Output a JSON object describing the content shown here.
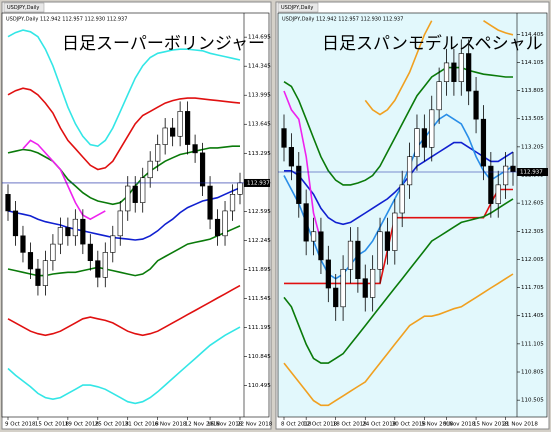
{
  "chart_data": [
    {
      "type": "candlestick",
      "tab": "USDJPY,Daily",
      "header": "USDJPY,Daily 112.942 112.957 112.930 112.937",
      "title": "日足スーパーボリンジャー",
      "background": "#ffffff",
      "last_price": 112.937,
      "categories": [
        "9 Oct 2018",
        null,
        null,
        null,
        "15 Oct 2018",
        null,
        null,
        null,
        "19 Oct 2018",
        null,
        null,
        null,
        "25 Oct 2018",
        null,
        null,
        null,
        "31 Oct 2018",
        null,
        null,
        null,
        "6 Nov 2018",
        null,
        null,
        null,
        "12 Nov 2018",
        null,
        null,
        "16 Nov 2018",
        null,
        null,
        null,
        "22 Nov 2018"
      ],
      "open": [
        112.8,
        112.6,
        112.3,
        112.1,
        111.9,
        111.7,
        112.0,
        112.2,
        112.4,
        112.3,
        112.5,
        112.2,
        112.0,
        111.8,
        112.1,
        112.3,
        112.6,
        112.9,
        112.7,
        113.0,
        113.2,
        113.4,
        113.6,
        113.5,
        113.8,
        113.4,
        113.3,
        112.9,
        112.5,
        112.3,
        112.6,
        112.8
      ],
      "high": [
        112.92,
        112.72,
        112.42,
        112.22,
        112.02,
        112.12,
        112.32,
        112.52,
        112.52,
        112.62,
        112.62,
        112.32,
        112.12,
        112.22,
        112.42,
        112.72,
        113.02,
        113.02,
        113.12,
        113.32,
        113.52,
        113.72,
        113.72,
        113.92,
        113.92,
        113.52,
        113.42,
        113.02,
        112.62,
        112.72,
        112.92,
        113.06
      ],
      "low": [
        112.48,
        112.18,
        111.98,
        111.78,
        111.58,
        111.58,
        111.88,
        112.08,
        112.18,
        112.18,
        112.08,
        111.88,
        111.68,
        111.68,
        111.98,
        112.18,
        112.48,
        112.58,
        112.58,
        112.88,
        113.08,
        113.28,
        113.38,
        113.38,
        113.28,
        113.18,
        112.78,
        112.38,
        112.18,
        112.18,
        112.48,
        112.68
      ],
      "close": [
        112.6,
        112.3,
        112.1,
        111.9,
        111.7,
        112.0,
        112.2,
        112.4,
        112.3,
        112.5,
        112.2,
        112.0,
        111.8,
        112.1,
        112.3,
        112.6,
        112.9,
        112.7,
        113.0,
        113.2,
        113.4,
        113.6,
        113.5,
        113.8,
        113.4,
        113.3,
        112.9,
        112.5,
        112.3,
        112.6,
        112.8,
        112.94
      ],
      "series": [
        {
          "color": "#33e6e6",
          "values": [
            114.7,
            114.75,
            114.78,
            114.76,
            114.7,
            114.55,
            114.35,
            114.1,
            113.85,
            113.65,
            113.5,
            113.4,
            113.38,
            113.45,
            113.6,
            113.8,
            114.0,
            114.2,
            114.35,
            114.45,
            114.5,
            114.52,
            114.54,
            114.55,
            114.55,
            114.54,
            114.53,
            114.5,
            114.48,
            114.46,
            114.44,
            114.42
          ]
        },
        {
          "color": "#e01010",
          "values": [
            114.0,
            114.05,
            114.08,
            114.06,
            114.0,
            113.9,
            113.78,
            113.6,
            113.45,
            113.35,
            113.25,
            113.15,
            113.1,
            113.12,
            113.2,
            113.35,
            113.5,
            113.65,
            113.75,
            113.8,
            113.85,
            113.9,
            113.93,
            113.95,
            113.96,
            113.96,
            113.95,
            113.94,
            113.93,
            113.92,
            113.91,
            113.9
          ]
        },
        {
          "color": "#0a7a0a",
          "values": [
            113.3,
            113.32,
            113.34,
            113.33,
            113.3,
            113.25,
            113.2,
            113.1,
            112.98,
            112.9,
            112.82,
            112.76,
            112.72,
            112.7,
            112.68,
            112.7,
            112.78,
            112.9,
            113.0,
            113.08,
            113.14,
            113.2,
            113.24,
            113.28,
            113.3,
            113.32,
            113.34,
            113.36,
            113.36,
            113.37,
            113.38,
            113.38
          ]
        },
        {
          "color": "#1020d0",
          "values": [
            112.6,
            112.58,
            112.56,
            112.54,
            112.5,
            112.47,
            112.45,
            112.43,
            112.4,
            112.38,
            112.36,
            112.34,
            112.32,
            112.3,
            112.28,
            112.27,
            112.26,
            112.25,
            112.26,
            112.3,
            112.36,
            112.44,
            112.5,
            112.58,
            112.64,
            112.68,
            112.72,
            112.74,
            112.76,
            112.8,
            112.84,
            112.88
          ]
        },
        {
          "color": "#0a7a0a",
          "values": [
            111.9,
            111.88,
            111.86,
            111.84,
            111.82,
            111.82,
            111.84,
            111.85,
            111.86,
            111.86,
            111.88,
            111.9,
            111.92,
            111.9,
            111.88,
            111.86,
            111.84,
            111.82,
            111.84,
            111.9,
            112.0,
            112.05,
            112.1,
            112.15,
            112.2,
            112.22,
            112.24,
            112.26,
            112.3,
            112.34,
            112.38,
            112.42
          ]
        },
        {
          "color": "#e01010",
          "values": [
            111.3,
            111.25,
            111.2,
            111.15,
            111.12,
            111.1,
            111.12,
            111.15,
            111.2,
            111.25,
            111.3,
            111.32,
            111.3,
            111.28,
            111.25,
            111.2,
            111.15,
            111.12,
            111.1,
            111.12,
            111.15,
            111.2,
            111.25,
            111.3,
            111.35,
            111.4,
            111.45,
            111.5,
            111.55,
            111.6,
            111.65,
            111.7
          ]
        },
        {
          "color": "#33e6e6",
          "values": [
            110.7,
            110.62,
            110.55,
            110.48,
            110.4,
            110.35,
            110.33,
            110.35,
            110.4,
            110.45,
            110.5,
            110.5,
            110.48,
            110.45,
            110.4,
            110.35,
            110.3,
            110.28,
            110.3,
            110.35,
            110.42,
            110.5,
            110.58,
            110.66,
            110.74,
            110.82,
            110.9,
            110.98,
            111.04,
            111.1,
            111.15,
            111.2
          ]
        },
        {
          "color": "#ee22ee",
          "values": [
            null,
            null,
            113.35,
            113.45,
            113.4,
            113.3,
            113.2,
            113.1,
            112.9,
            112.7,
            112.55,
            112.5,
            112.55,
            112.6,
            null,
            null,
            null,
            null,
            null,
            null,
            null,
            null,
            null,
            null,
            null,
            null,
            null,
            null,
            null,
            null,
            null,
            null
          ]
        }
      ],
      "ylim": [
        110.2,
        114.95
      ],
      "yticks": [
        114.695,
        114.345,
        113.995,
        113.645,
        113.295,
        112.945,
        112.595,
        112.245,
        111.895,
        111.545,
        111.195,
        110.845,
        110.495
      ]
    },
    {
      "type": "candlestick",
      "tab": "USDJPY,Daily",
      "header": "USDJPY,Daily 112.942 112.957 112.930 112.937",
      "title": "日足スパンモデルスペシャル",
      "background": "#e2f8fc",
      "last_price": 112.937,
      "categories": [
        "8 Oct 2018",
        null,
        null,
        "12 Oct 2018",
        null,
        null,
        null,
        "18 Oct 2018",
        null,
        null,
        null,
        "24 Oct 2018",
        null,
        null,
        null,
        "30 Oct 2018",
        null,
        null,
        null,
        "5 Nov 2018",
        null,
        null,
        "9 Nov 2018",
        null,
        null,
        null,
        "15 Nov 2018",
        null,
        null,
        null,
        "21 Nov 2018",
        null
      ],
      "open": [
        113.4,
        113.2,
        113.0,
        112.6,
        112.2,
        112.3,
        112.0,
        111.7,
        111.5,
        111.9,
        112.2,
        111.8,
        111.6,
        111.9,
        112.3,
        112.1,
        112.5,
        112.8,
        113.1,
        113.4,
        113.2,
        113.6,
        113.9,
        114.1,
        113.9,
        114.2,
        113.8,
        113.5,
        113.0,
        112.6,
        112.8,
        113.0
      ],
      "high": [
        113.55,
        113.35,
        113.15,
        112.75,
        112.45,
        112.45,
        112.15,
        111.85,
        112.05,
        112.35,
        112.35,
        111.95,
        112.05,
        112.45,
        112.45,
        112.65,
        112.95,
        113.25,
        113.55,
        113.55,
        113.75,
        114.05,
        114.25,
        114.25,
        114.35,
        114.35,
        113.95,
        113.65,
        113.15,
        112.95,
        113.15,
        113.15
      ],
      "low": [
        113.05,
        112.85,
        112.45,
        112.05,
        112.05,
        111.85,
        111.55,
        111.35,
        111.35,
        111.75,
        111.65,
        111.45,
        111.45,
        111.75,
        111.95,
        111.95,
        112.35,
        112.65,
        112.95,
        113.05,
        113.05,
        113.45,
        113.75,
        113.75,
        113.75,
        113.65,
        113.35,
        112.85,
        112.45,
        112.45,
        112.65,
        112.79
      ],
      "close": [
        113.2,
        113.0,
        112.6,
        112.2,
        112.3,
        112.0,
        111.7,
        111.5,
        111.9,
        112.2,
        111.8,
        111.6,
        111.9,
        112.3,
        112.1,
        112.5,
        112.8,
        113.1,
        113.4,
        113.2,
        113.6,
        113.9,
        114.1,
        113.9,
        114.2,
        113.8,
        113.5,
        113.0,
        112.6,
        112.8,
        113.0,
        112.94
      ],
      "series": [
        {
          "color": "#f0a020",
          "values": [
            null,
            null,
            null,
            null,
            null,
            null,
            null,
            null,
            null,
            null,
            null,
            113.7,
            113.6,
            113.55,
            113.6,
            113.7,
            113.85,
            114.0,
            114.2,
            114.4,
            114.55,
            null,
            null,
            null,
            null,
            null,
            null,
            114.55,
            114.5,
            114.45,
            114.42,
            114.4
          ]
        },
        {
          "color": "#0a7a0a",
          "values": [
            113.9,
            113.85,
            113.7,
            113.5,
            113.3,
            113.1,
            112.95,
            112.85,
            112.8,
            112.8,
            112.82,
            112.85,
            112.9,
            113.0,
            113.15,
            113.3,
            113.45,
            113.6,
            113.75,
            113.85,
            113.95,
            114.0,
            114.05,
            114.05,
            114.05,
            114.02,
            114.0,
            113.98,
            113.97,
            113.96,
            113.95,
            113.95
          ]
        },
        {
          "color": "#1020d0",
          "values": [
            112.95,
            112.95,
            112.9,
            112.8,
            112.7,
            112.55,
            112.45,
            112.4,
            112.38,
            112.4,
            112.45,
            112.5,
            112.55,
            112.6,
            112.65,
            112.72,
            112.8,
            112.9,
            113.0,
            113.05,
            113.1,
            113.15,
            113.2,
            113.25,
            113.25,
            113.2,
            113.15,
            113.1,
            113.05,
            113.05,
            113.1,
            113.15
          ]
        },
        {
          "color": "#2a8ee8",
          "values": [
            112.9,
            112.75,
            112.6,
            112.4,
            112.2,
            112.0,
            111.85,
            111.8,
            111.85,
            111.95,
            112.05,
            112.1,
            112.2,
            112.35,
            112.5,
            112.65,
            112.8,
            113.0,
            113.2,
            113.3,
            113.4,
            113.5,
            113.55,
            113.5,
            113.45,
            113.3,
            113.1,
            112.95,
            112.85,
            112.9,
            112.95,
            113.0
          ]
        },
        {
          "color": "#e01010",
          "values": [
            111.75,
            111.75,
            111.75,
            111.75,
            111.75,
            111.75,
            111.75,
            111.75,
            111.75,
            111.75,
            111.75,
            111.75,
            111.75,
            111.75,
            112.1,
            112.45,
            112.45,
            112.45,
            112.45,
            112.45,
            112.45,
            112.45,
            112.45,
            112.45,
            112.45,
            112.45,
            112.45,
            112.45,
            112.6,
            112.75,
            112.75,
            112.75
          ]
        },
        {
          "color": "#0a7a0a",
          "values": [
            111.6,
            111.5,
            111.3,
            111.1,
            110.95,
            110.9,
            110.9,
            110.95,
            111.0,
            111.1,
            111.2,
            111.3,
            111.4,
            111.5,
            111.6,
            111.7,
            111.8,
            111.9,
            112.0,
            112.1,
            112.2,
            112.25,
            112.3,
            112.35,
            112.4,
            112.42,
            112.44,
            112.46,
            112.5,
            112.55,
            112.6,
            112.65
          ]
        },
        {
          "color": "#f0a020",
          "values": [
            110.9,
            110.8,
            110.7,
            110.6,
            110.5,
            110.45,
            110.45,
            110.5,
            110.55,
            110.6,
            110.65,
            110.7,
            110.8,
            110.9,
            111.0,
            111.1,
            111.2,
            111.3,
            111.35,
            111.4,
            111.4,
            111.42,
            111.45,
            111.48,
            111.5,
            111.55,
            111.6,
            111.65,
            111.7,
            111.75,
            111.8,
            111.85
          ]
        },
        {
          "color": "#ee22ee",
          "values": [
            113.8,
            113.6,
            113.5,
            113.1,
            112.5,
            112.2,
            null,
            null,
            null,
            null,
            null,
            null,
            null,
            null,
            null,
            null,
            null,
            null,
            null,
            null,
            null,
            null,
            null,
            null,
            null,
            null,
            null,
            null,
            null,
            null,
            null,
            null
          ]
        }
      ],
      "ylim": [
        110.4,
        114.6
      ],
      "yticks": [
        114.405,
        114.105,
        113.805,
        113.505,
        113.205,
        112.905,
        112.605,
        112.305,
        112.005,
        111.705,
        111.405,
        111.105,
        110.805,
        110.505
      ]
    }
  ]
}
